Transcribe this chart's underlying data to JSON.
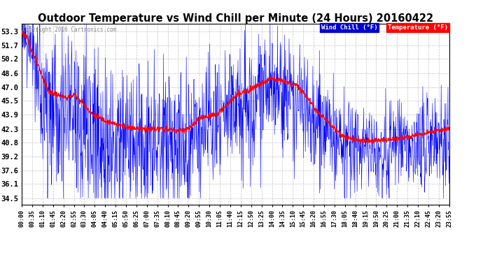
{
  "title": "Outdoor Temperature vs Wind Chill per Minute (24 Hours) 20160422",
  "copyright": "Copyright 2016 Cartronics.com",
  "legend_wind_chill_label": "Wind Chill (°F)",
  "legend_temp_label": "Temperature (°F)",
  "wind_chill_color": "#FF0000",
  "temp_color": "#0000FF",
  "background_color": "#FFFFFF",
  "plot_bg_color": "#FFFFFF",
  "grid_color": "#AAAAAA",
  "title_fontsize": 10.5,
  "y_ticks": [
    34.5,
    36.1,
    37.6,
    39.2,
    40.8,
    42.3,
    43.9,
    45.5,
    47.0,
    48.6,
    50.2,
    51.7,
    53.3
  ],
  "ylim_min": 33.8,
  "ylim_max": 54.2,
  "x_tick_labels": [
    "00:00",
    "00:35",
    "01:10",
    "01:45",
    "02:20",
    "02:55",
    "03:30",
    "04:05",
    "04:40",
    "05:15",
    "05:50",
    "06:25",
    "07:00",
    "07:35",
    "08:10",
    "08:45",
    "09:20",
    "09:55",
    "10:30",
    "11:05",
    "11:40",
    "12:15",
    "12:50",
    "13:25",
    "14:00",
    "14:35",
    "15:10",
    "15:45",
    "16:20",
    "16:55",
    "17:30",
    "18:05",
    "18:40",
    "19:15",
    "19:50",
    "20:25",
    "21:00",
    "21:35",
    "22:10",
    "22:45",
    "23:20",
    "23:55"
  ],
  "wc_shape_hours": [
    0.0,
    0.3,
    1.5,
    2.5,
    3.0,
    4.0,
    5.0,
    6.0,
    7.0,
    8.0,
    9.0,
    9.5,
    10.0,
    11.0,
    12.0,
    13.0,
    13.5,
    14.0,
    14.5,
    15.0,
    15.5,
    16.0,
    16.5,
    17.0,
    17.5,
    18.0,
    18.5,
    19.0,
    20.0,
    21.0,
    22.0,
    23.0,
    23.99
  ],
  "wc_shape_vals": [
    53.3,
    52.5,
    46.5,
    45.8,
    46.2,
    43.9,
    43.0,
    42.5,
    42.3,
    42.3,
    42.1,
    42.5,
    43.5,
    44.0,
    46.0,
    47.0,
    47.5,
    48.0,
    47.8,
    47.5,
    47.2,
    46.0,
    44.5,
    43.5,
    42.5,
    41.5,
    41.2,
    41.0,
    41.0,
    41.2,
    41.5,
    42.0,
    42.3
  ]
}
